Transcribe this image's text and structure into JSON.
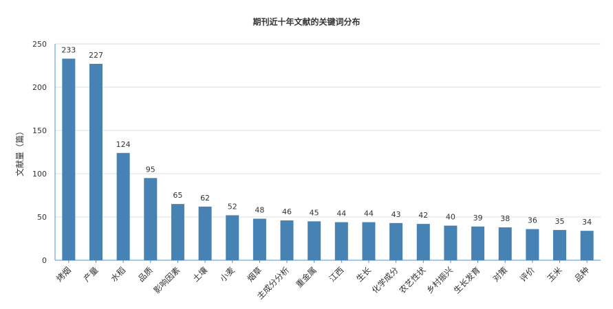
{
  "chart_data": {
    "type": "bar",
    "title": "期刊近十年文献的关键词分布",
    "ylabel": "文献量（篇）",
    "xlabel": "",
    "ylim": [
      0,
      250
    ],
    "yticks": [
      0,
      50,
      100,
      150,
      200,
      250
    ],
    "grid": true,
    "bar_color": "#4682B4",
    "categories": [
      "烤烟",
      "产量",
      "水稻",
      "品质",
      "影响因素",
      "土壤",
      "小麦",
      "烟草",
      "主成分分析",
      "重金属",
      "江西",
      "生长",
      "化学成分",
      "农艺性状",
      "乡村振兴",
      "生长发育",
      "对策",
      "评价",
      "玉米",
      "品种"
    ],
    "values": [
      233,
      227,
      124,
      95,
      65,
      62,
      52,
      48,
      46,
      45,
      44,
      44,
      43,
      42,
      40,
      39,
      38,
      36,
      35,
      34
    ]
  }
}
